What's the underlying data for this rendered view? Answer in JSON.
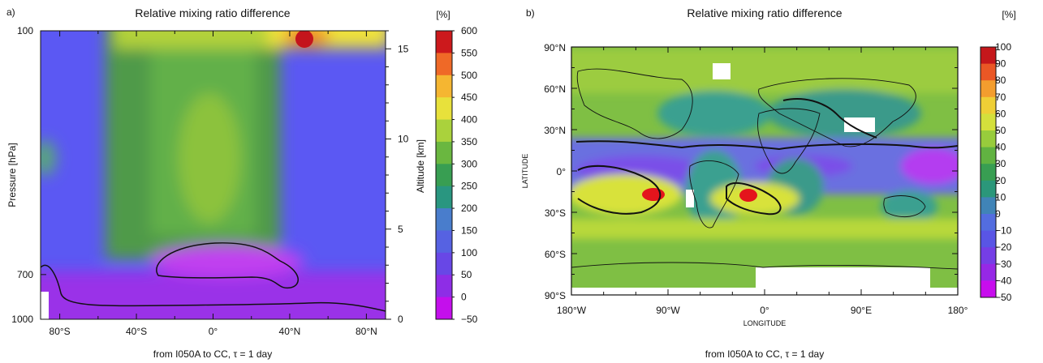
{
  "chart_data": [
    {
      "type": "heatmap",
      "panel_label": "a)",
      "title": "Relative mixing ratio difference",
      "unit": "[%]",
      "ylabel": "Pressure [hPa]",
      "y2label": "Altitude [km]",
      "xlabel": "from I050A to CC, τ = 1 day",
      "xticks": [
        "80°S",
        "40°S",
        "0°",
        "40°N",
        "80°N"
      ],
      "yticks": [
        "100",
        "700",
        "1000"
      ],
      "y2ticks": [
        "0",
        "5",
        "10",
        "15"
      ],
      "colorbar": {
        "min": -50,
        "max": 600,
        "step": 50,
        "labels": [
          "600",
          "550",
          "500",
          "450",
          "400",
          "350",
          "300",
          "250",
          "200",
          "150",
          "100",
          "50",
          "0",
          "−50"
        ]
      },
      "regions": [
        {
          "feature": "background",
          "value": 100
        },
        {
          "feature": "tropical column",
          "value": 200
        },
        {
          "feature": "core column",
          "value": 250
        },
        {
          "feature": "tropopause band",
          "value": 400
        },
        {
          "feature": "maximum near 45°N, 100 hPa",
          "value": 600
        },
        {
          "feature": "boundary layer",
          "value": -20
        },
        {
          "feature": "enclosed low-level minimum",
          "value": -40
        }
      ]
    },
    {
      "type": "heatmap",
      "panel_label": "b)",
      "title": "Relative mixing ratio difference",
      "unit": "[%]",
      "xlabel": "LONGITUDE",
      "ylabel": "LATITUDE",
      "footer": "from I050A to CC, τ = 1 day",
      "xticks": [
        "180°W",
        "90°W",
        "0°",
        "90°E",
        "180°"
      ],
      "yticks": [
        "90°N",
        "60°N",
        "30°N",
        "0°",
        "30°S",
        "60°S",
        "90°S"
      ],
      "colorbar": {
        "min": -50,
        "max": 100,
        "step": 10,
        "labels": [
          "100",
          "90",
          "80",
          "70",
          "60",
          "50",
          "40",
          "30",
          "20",
          "10",
          "0",
          "−10",
          "−20",
          "−30",
          "−40",
          "−50"
        ]
      },
      "regions": [
        {
          "feature": "high latitudes",
          "value": 25
        },
        {
          "feature": "continents",
          "value": 0
        },
        {
          "feature": "tropical band",
          "value": -30
        },
        {
          "feature": "Pacific tropical minimum",
          "value": -45
        },
        {
          "feature": "SE Pacific maximum",
          "value": 90
        },
        {
          "feature": "SE Atlantic maximum",
          "value": 90
        },
        {
          "feature": "Southern Hemisphere ocean band",
          "value": 40
        }
      ]
    }
  ]
}
